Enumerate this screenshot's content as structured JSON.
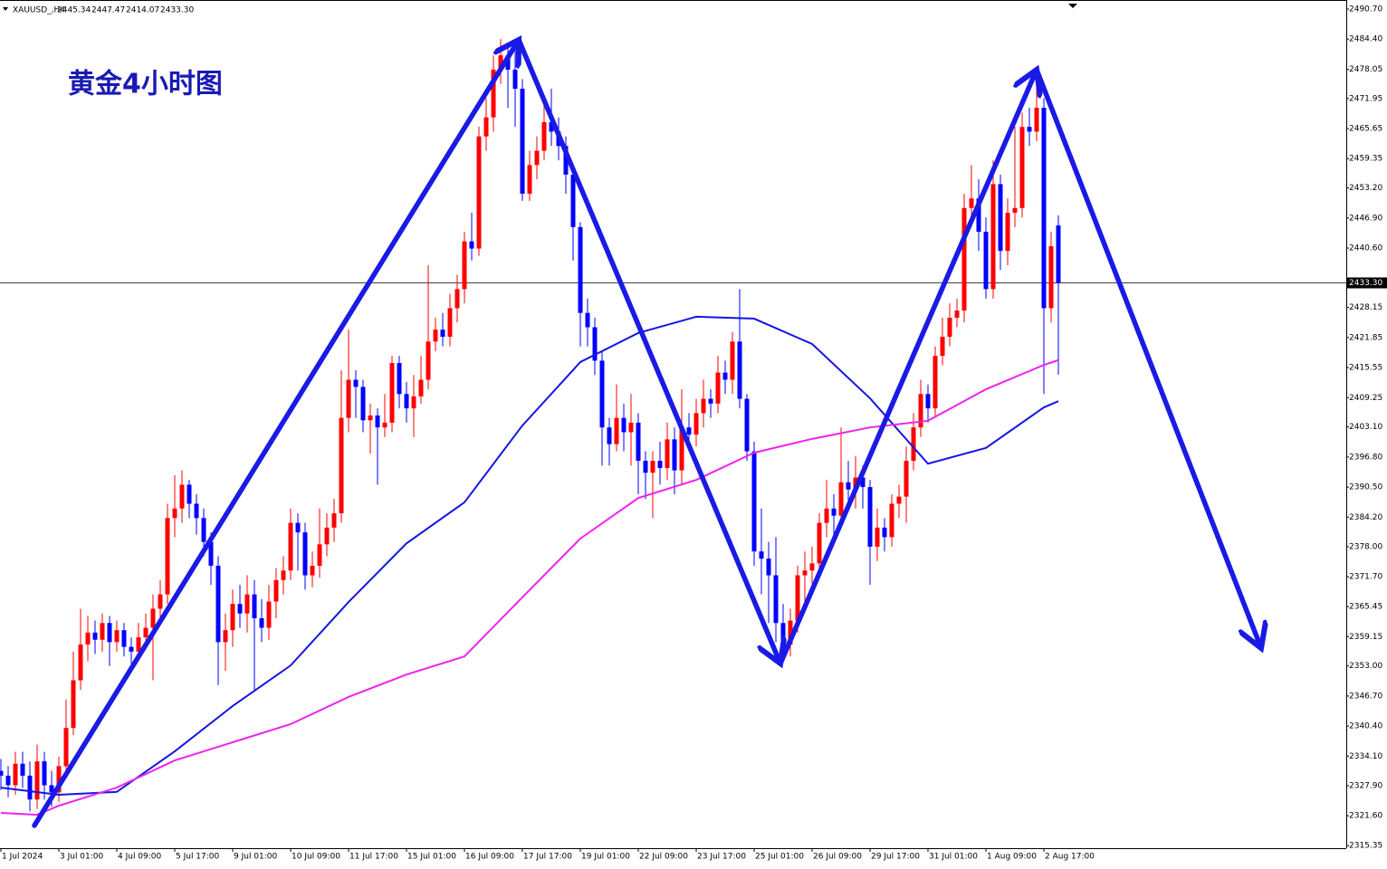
{
  "chart_data": {
    "type": "candlestick",
    "title": "黄金4小时图",
    "symbol": "XAUUSD_,H4",
    "header_values": [
      "2445.34",
      "2447.47",
      "2414.07",
      "2433.30"
    ],
    "up_color": "#ff0000",
    "down_color": "#0000ff",
    "current_price": {
      "value": 2433.3,
      "label": "2433.30"
    },
    "ylim": [
      2314.8,
      2492.6
    ],
    "yticks": [
      {
        "value": 2490.7,
        "label": "2490.70"
      },
      {
        "value": 2484.4,
        "label": "2484.40"
      },
      {
        "value": 2478.05,
        "label": "2478.05"
      },
      {
        "value": 2471.95,
        "label": "2471.95"
      },
      {
        "value": 2465.65,
        "label": "2465.65"
      },
      {
        "value": 2459.35,
        "label": "2459.35"
      },
      {
        "value": 2453.2,
        "label": "2453.20"
      },
      {
        "value": 2446.9,
        "label": "2446.90"
      },
      {
        "value": 2440.6,
        "label": "2440.60"
      },
      {
        "value": 2428.15,
        "label": "2428.15"
      },
      {
        "value": 2421.85,
        "label": "2421.85"
      },
      {
        "value": 2415.55,
        "label": "2415.55"
      },
      {
        "value": 2409.25,
        "label": "2409.25"
      },
      {
        "value": 2403.1,
        "label": "2403.10"
      },
      {
        "value": 2396.8,
        "label": "2396.80"
      },
      {
        "value": 2390.5,
        "label": "2390.50"
      },
      {
        "value": 2384.2,
        "label": "2384.20"
      },
      {
        "value": 2378,
        "label": "2378.00"
      },
      {
        "value": 2371.7,
        "label": "2371.70"
      },
      {
        "value": 2365.45,
        "label": "2365.45"
      },
      {
        "value": 2359.15,
        "label": "2359.15"
      },
      {
        "value": 2353,
        "label": "2353.00"
      },
      {
        "value": 2346.7,
        "label": "2346.70"
      },
      {
        "value": 2340.4,
        "label": "2340.40"
      },
      {
        "value": 2334.1,
        "label": "2334.10"
      },
      {
        "value": 2327.9,
        "label": "2327.90"
      },
      {
        "value": 2321.6,
        "label": "2321.60"
      },
      {
        "value": 2315.35,
        "label": "2315.35"
      }
    ],
    "categories": [
      "1 Jul 2024",
      null,
      null,
      null,
      null,
      null,
      null,
      null,
      "3 Jul 01:00",
      null,
      null,
      null,
      null,
      null,
      null,
      null,
      "4 Jul 09:00",
      null,
      null,
      null,
      null,
      null,
      null,
      null,
      "5 Jul 17:00",
      null,
      null,
      null,
      null,
      null,
      null,
      null,
      "9 Jul 01:00",
      null,
      null,
      null,
      null,
      null,
      null,
      null,
      "10 Jul 09:00",
      null,
      null,
      null,
      null,
      null,
      null,
      null,
      "11 Jul 17:00",
      null,
      null,
      null,
      null,
      null,
      null,
      null,
      "15 Jul 01:00",
      null,
      null,
      null,
      null,
      null,
      null,
      null,
      "16 Jul 09:00",
      null,
      null,
      null,
      null,
      null,
      null,
      null,
      "17 Jul 17:00",
      null,
      null,
      null,
      null,
      null,
      null,
      null,
      "19 Jul 01:00",
      null,
      null,
      null,
      null,
      null,
      null,
      null,
      "22 Jul 09:00",
      null,
      null,
      null,
      null,
      null,
      null,
      null,
      "23 Jul 17:00",
      null,
      null,
      null,
      null,
      null,
      null,
      null,
      "25 Jul 01:00",
      null,
      null,
      null,
      null,
      null,
      null,
      null,
      "26 Jul 09:00",
      null,
      null,
      null,
      null,
      null,
      null,
      null,
      "29 Jul 17:00",
      null,
      null,
      null,
      null,
      null,
      null,
      null,
      "31 Jul 01:00",
      null,
      null,
      null,
      null,
      null,
      null,
      null,
      "1 Aug 09:00",
      null,
      null,
      null,
      null,
      null,
      null,
      null,
      "2 Aug 17:00",
      null,
      null
    ],
    "open": [
      2331,
      2330,
      2328,
      2332.5,
      2330,
      2325,
      2333,
      2328,
      2326.5,
      2332,
      2340,
      2350,
      2357.5,
      2360,
      2358.5,
      2362,
      2358,
      2360.5,
      2357,
      2356,
      2359,
      2361,
      2365,
      2368,
      2384,
      2386,
      2391,
      2387,
      2384,
      2379,
      2374,
      2358,
      2360.5,
      2366,
      2364,
      2368,
      2363,
      2361,
      2366.5,
      2371,
      2373,
      2383,
      2381,
      2372,
      2374,
      2378.5,
      2382,
      2385,
      2405,
      2413,
      2411.5,
      2404.5,
      2405.5,
      2403,
      2404,
      2416.5,
      2410,
      2407,
      2409.5,
      2413,
      2421,
      2423.5,
      2422,
      2428,
      2432,
      2442,
      2440.5,
      2464,
      2468,
      2478,
      2481,
      2478,
      2474,
      2452,
      2458,
      2461,
      2467,
      2465,
      2462,
      2456,
      2445,
      2427,
      2424,
      2417,
      2403,
      2399.5,
      2405,
      2402,
      2404,
      2396,
      2393.5,
      2396,
      2394.5,
      2400.5,
      2394,
      2403,
      2401.5,
      2406,
      2409,
      2408,
      2414.5,
      2413,
      2421,
      2409,
      2398,
      2377,
      2375.5,
      2372,
      2362,
      2357.5,
      2362.5,
      2372,
      2373,
      2374.5,
      2383,
      2386,
      2384.5,
      2391.5,
      2390,
      2392.5,
      2390.5,
      2378,
      2382,
      2380,
      2387,
      2388.5,
      2396,
      2403,
      2410,
      2407,
      2418,
      2422,
      2426,
      2427.5,
      2449,
      2451,
      2444,
      2432,
      2454,
      2440,
      2448,
      2449,
      2466,
      2465,
      2470,
      2428,
      2445.34
    ],
    "high": [
      2333.5,
      2332,
      2335,
      2335,
      2333,
      2336.5,
      2335,
      2331,
      2334,
      2346,
      2356,
      2365,
      2363.5,
      2362.5,
      2364,
      2363.5,
      2362.5,
      2362,
      2359,
      2362,
      2364,
      2368,
      2371,
      2387,
      2393,
      2394,
      2392,
      2389,
      2386,
      2381,
      2376,
      2364,
      2369,
      2370,
      2372,
      2371,
      2367,
      2370,
      2373.5,
      2376,
      2386,
      2385,
      2383,
      2377,
      2386,
      2385,
      2388,
      2415,
      2423.5,
      2415,
      2413,
      2408,
      2407,
      2410,
      2418,
      2418,
      2412.5,
      2414,
      2418,
      2437,
      2426,
      2427,
      2431,
      2435,
      2444,
      2448,
      2466,
      2472,
      2481,
      2484.4,
      2483,
      2483.5,
      2476,
      2461,
      2464,
      2471,
      2474,
      2468,
      2464,
      2458,
      2446,
      2430,
      2426,
      2419,
      2405,
      2412,
      2408,
      2410,
      2406,
      2398,
      2398,
      2400,
      2404,
      2403,
      2411,
      2406,
      2409,
      2413,
      2411,
      2418,
      2417,
      2423,
      2432,
      2410,
      2400,
      2386,
      2379,
      2380,
      2366,
      2365,
      2374,
      2377,
      2378,
      2385,
      2392,
      2389,
      2403,
      2396,
      2397,
      2395,
      2392,
      2386,
      2384,
      2389,
      2391,
      2399,
      2406,
      2413,
      2412,
      2420,
      2426,
      2429,
      2430,
      2452,
      2458,
      2455,
      2447,
      2459,
      2456,
      2451,
      2466,
      2469,
      2470,
      2478,
      2472,
      2444,
      2447.47
    ],
    "low": [
      2327,
      2325.5,
      2326,
      2327.5,
      2322.5,
      2323,
      2325,
      2323.5,
      2324.5,
      2330,
      2338.5,
      2348,
      2354,
      2355.5,
      2356,
      2353,
      2356,
      2355,
      2353.5,
      2354,
      2356.5,
      2350,
      2362,
      2366,
      2380,
      2383,
      2384,
      2380.5,
      2376,
      2370,
      2349,
      2352,
      2357,
      2361,
      2360,
      2348,
      2358,
      2358.5,
      2363,
      2368,
      2371,
      2373,
      2369,
      2369.5,
      2371.5,
      2376,
      2379,
      2383,
      2402,
      2405,
      2402,
      2397.5,
      2391,
      2401,
      2402,
      2407,
      2404,
      2401,
      2408,
      2411,
      2419,
      2420,
      2420,
      2425,
      2429,
      2438,
      2439,
      2461,
      2465,
      2475,
      2470,
      2466,
      2450.5,
      2450.5,
      2455,
      2459,
      2462,
      2459,
      2452,
      2438,
      2420,
      2420,
      2414,
      2395,
      2395,
      2398,
      2398,
      2395,
      2389,
      2388,
      2384,
      2391,
      2392,
      2389,
      2391,
      2398,
      2399,
      2403,
      2405,
      2406,
      2410,
      2410,
      2407,
      2396,
      2374,
      2368,
      2362,
      2358,
      2354,
      2355,
      2360,
      2365,
      2370,
      2372,
      2380,
      2380,
      2382,
      2386,
      2386,
      2386,
      2370,
      2375,
      2377,
      2378,
      2384,
      2383,
      2394,
      2401,
      2404,
      2405,
      2416,
      2420,
      2424,
      2425,
      2445,
      2440,
      2430,
      2430,
      2436,
      2437,
      2445,
      2447,
      2462,
      2463,
      2410,
      2425,
      2414.07
    ],
    "close": [
      2330,
      2328,
      2332.5,
      2330,
      2325,
      2333,
      2328,
      2326.5,
      2332,
      2340,
      2350,
      2357.5,
      2360,
      2358.5,
      2362,
      2358,
      2360.5,
      2357,
      2356,
      2359,
      2361,
      2365,
      2368,
      2384,
      2386,
      2391,
      2387,
      2384,
      2379,
      2374,
      2358,
      2360.5,
      2366,
      2364,
      2368,
      2363,
      2361,
      2366.5,
      2371,
      2373,
      2383,
      2381,
      2372,
      2374,
      2378.5,
      2382,
      2385,
      2405,
      2413,
      2411.5,
      2404.5,
      2405.5,
      2403,
      2404,
      2416.5,
      2410,
      2407,
      2409.5,
      2413,
      2421,
      2423.5,
      2422,
      2428,
      2432,
      2442,
      2440.5,
      2464,
      2468,
      2478,
      2481,
      2478,
      2474,
      2452,
      2458,
      2461,
      2467,
      2465,
      2462,
      2456,
      2445,
      2427,
      2424,
      2417,
      2403,
      2399.5,
      2405,
      2402,
      2404,
      2396,
      2393.5,
      2396,
      2394.5,
      2400.5,
      2394,
      2403,
      2401.5,
      2406,
      2409,
      2408,
      2414.5,
      2413,
      2421,
      2409,
      2398,
      2377,
      2375.5,
      2372,
      2362,
      2357.5,
      2362.5,
      2372,
      2373,
      2374.5,
      2383,
      2386,
      2384.5,
      2391.5,
      2390,
      2392.5,
      2390.5,
      2378,
      2382,
      2380,
      2387,
      2388.5,
      2396,
      2403,
      2410,
      2407,
      2418,
      2422,
      2426,
      2427.5,
      2449,
      2451,
      2444,
      2432,
      2454,
      2440,
      2448,
      2449,
      2466,
      2465,
      2470,
      2428,
      2441,
      2433.3
    ],
    "lines": [
      {
        "color": "#1414e6",
        "x": [
          0,
          8,
          16,
          24,
          32,
          40,
          48,
          56,
          64,
          72,
          80,
          88,
          96,
          104,
          112,
          120,
          128,
          136,
          144,
          146
        ],
        "values": [
          2327.5,
          2326,
          2326.6,
          2335.1,
          2344.6,
          2353.1,
          2366.4,
          2378.7,
          2387.3,
          2403.4,
          2416.7,
          2422.8,
          2426.2,
          2425.8,
          2420.5,
          2409.1,
          2395.4,
          2398.7,
          2407.2,
          2408.5
        ]
      },
      {
        "color": "#ee22ee",
        "x": [
          0,
          5,
          8,
          16,
          24,
          32,
          40,
          48,
          56,
          64,
          72,
          80,
          88,
          96,
          104,
          112,
          120,
          128,
          136,
          144,
          146
        ],
        "values": [
          2322.2,
          2321.8,
          2323.7,
          2327.5,
          2333.2,
          2337,
          2340.8,
          2346.5,
          2351.2,
          2355,
          2367.4,
          2379.7,
          2388.2,
          2392,
          2397.7,
          2400.6,
          2403,
          2404.4,
          2411,
          2416.1,
          2417.1
        ]
      }
    ]
  }
}
